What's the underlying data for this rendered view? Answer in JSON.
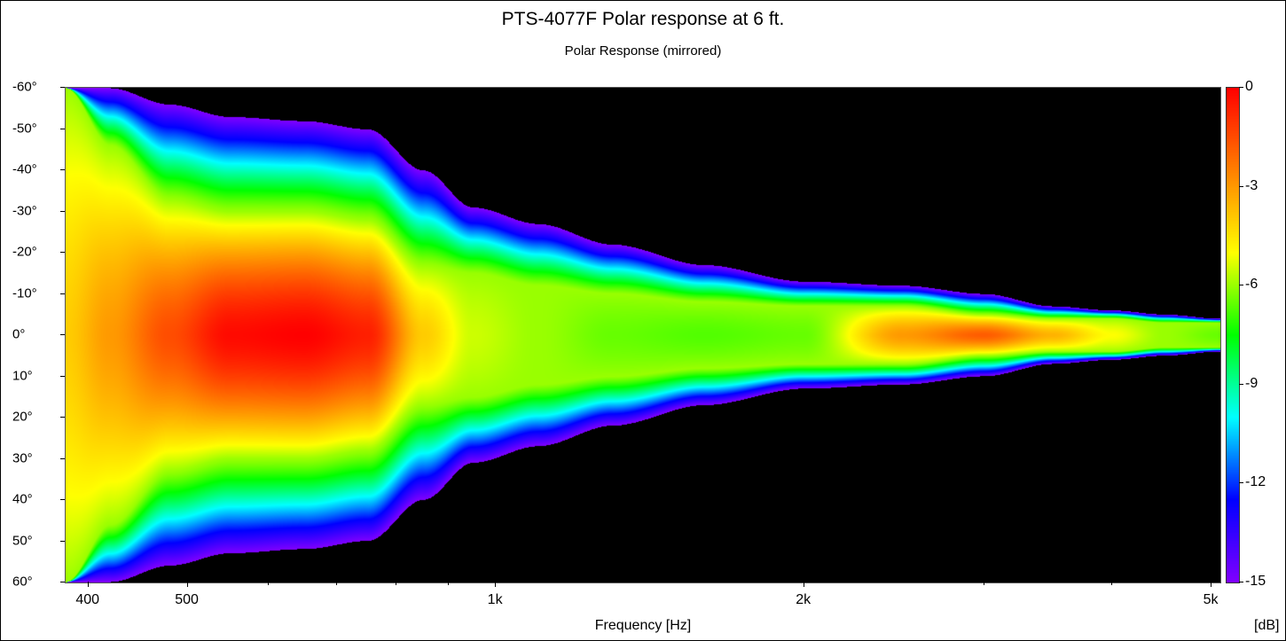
{
  "chart_data": {
    "type": "heatmap",
    "title": "PTS-4077F Polar response at 6 ft.",
    "subtitle": "Polar Response (mirrored)",
    "xlabel": "Frequency [Hz]",
    "x_scale": "log",
    "xlim": [
      380,
      5100
    ],
    "x_ticks": [
      {
        "value": 400,
        "label": "400"
      },
      {
        "value": 500,
        "label": "500"
      },
      {
        "value": 1000,
        "label": "1k"
      },
      {
        "value": 2000,
        "label": "2k"
      },
      {
        "value": 5000,
        "label": "5k"
      }
    ],
    "x_minor_ticks": [
      600,
      700,
      800,
      900,
      3000,
      4000
    ],
    "ylim": [
      -60,
      60
    ],
    "y_ticks": [
      {
        "value": -60,
        "label": "-60°"
      },
      {
        "value": -50,
        "label": "-50°"
      },
      {
        "value": -40,
        "label": "-40°"
      },
      {
        "value": -30,
        "label": "-30°"
      },
      {
        "value": -20,
        "label": "-20°"
      },
      {
        "value": -10,
        "label": "-10°"
      },
      {
        "value": 0,
        "label": "0°"
      },
      {
        "value": 10,
        "label": "10°"
      },
      {
        "value": 20,
        "label": "20°"
      },
      {
        "value": 30,
        "label": "30°"
      },
      {
        "value": 40,
        "label": "40°"
      },
      {
        "value": 50,
        "label": "50°"
      },
      {
        "value": 60,
        "label": "60°"
      }
    ],
    "colorbar": {
      "unit": "[dB]",
      "range": [
        -15,
        0
      ],
      "ticks": [
        {
          "value": 0,
          "label": "0"
        },
        {
          "value": -3,
          "label": "-3"
        },
        {
          "value": -6,
          "label": "-6"
        },
        {
          "value": -9,
          "label": "-9"
        },
        {
          "value": -12,
          "label": "-12"
        },
        {
          "value": -15,
          "label": "-15"
        }
      ],
      "colors": [
        "#8000ff",
        "#0000ff",
        "#00ffff",
        "#00ff00",
        "#ffff00",
        "#ff8000",
        "#ff0000"
      ],
      "below_range_color": "#000000"
    },
    "beamwidth_profile": {
      "description_freq_hz": [
        380,
        420,
        480,
        550,
        650,
        750,
        850,
        950,
        1100,
        1300,
        1600,
        2000,
        2500,
        3000,
        3500,
        4000,
        4500,
        5100
      ],
      "minus6db_half_angle_deg": [
        60,
        46,
        33,
        30,
        30,
        28,
        17,
        15,
        12,
        10,
        8,
        7,
        7,
        5,
        4,
        4,
        3,
        3
      ],
      "minus15db_half_angle_deg": [
        60,
        60,
        56,
        53,
        52,
        50,
        40,
        31,
        27,
        22,
        17,
        13,
        12,
        10,
        7,
        6,
        5,
        4
      ],
      "on_axis_peak_db": [
        -4,
        -3,
        -1.5,
        -0.2,
        0,
        -0.6,
        -4,
        -5.5,
        -6,
        -6.5,
        -6.7,
        -6.5,
        -3,
        -1.8,
        -3.5,
        -5,
        -6,
        -6.5
      ]
    }
  }
}
